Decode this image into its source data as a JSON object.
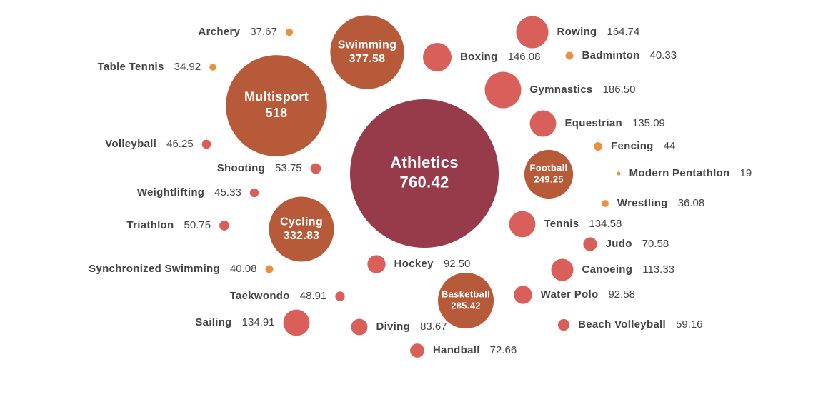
{
  "chart_data": {
    "type": "bubble",
    "categories": [
      "Athletics",
      "Multisport",
      "Swimming",
      "Cycling",
      "Basketball",
      "Football",
      "Archery",
      "Table Tennis",
      "Volleyball",
      "Shooting",
      "Weightlifting",
      "Triathlon",
      "Synchronized Swimming",
      "Taekwondo",
      "Sailing",
      "Hockey",
      "Diving",
      "Handball",
      "Boxing",
      "Rowing",
      "Badminton",
      "Gymnastics",
      "Equestrian",
      "Fencing",
      "Modern Pentathlon",
      "Wrestling",
      "Tennis",
      "Judo",
      "Canoeing",
      "Water Polo",
      "Beach Volleyball"
    ],
    "values": [
      760.42,
      518,
      377.58,
      332.83,
      285.42,
      249.25,
      37.67,
      34.92,
      46.25,
      53.75,
      45.33,
      50.75,
      40.08,
      48.91,
      134.91,
      92.5,
      83.67,
      72.66,
      146.08,
      164.74,
      40.33,
      186.5,
      135.09,
      44,
      19,
      36.08,
      134.58,
      70.58,
      113.33,
      92.58,
      59.16
    ],
    "value_labels": [
      "760.42",
      "518",
      "377.58",
      "332.83",
      "285.42",
      "249.25",
      "37.67",
      "34.92",
      "46.25",
      "53.75",
      "45.33",
      "50.75",
      "40.08",
      "48.91",
      "134.91",
      "92.50",
      "83.67",
      "72.66",
      "146.08",
      "164.74",
      "40.33",
      "186.50",
      "135.09",
      "44",
      "19",
      "36.08",
      "134.58",
      "70.58",
      "113.33",
      "92.58",
      "59.16"
    ],
    "colors": [
      "#973b4b",
      "#b65a3a",
      "#b65a3a",
      "#b65a3a",
      "#b65a3a",
      "#b65a3a",
      "#e8923f",
      "#e8923f",
      "#d9605a",
      "#d9605a",
      "#d9605a",
      "#d9605a",
      "#e8923f",
      "#d9605a",
      "#d9605a",
      "#d9605a",
      "#d9605a",
      "#d9605a",
      "#d9605a",
      "#d9605a",
      "#e8923f",
      "#d9605a",
      "#d9605a",
      "#e8923f",
      "#e8923f",
      "#e8923f",
      "#d9605a",
      "#d9605a",
      "#d9605a",
      "#d9605a",
      "#d9605a"
    ]
  }
}
